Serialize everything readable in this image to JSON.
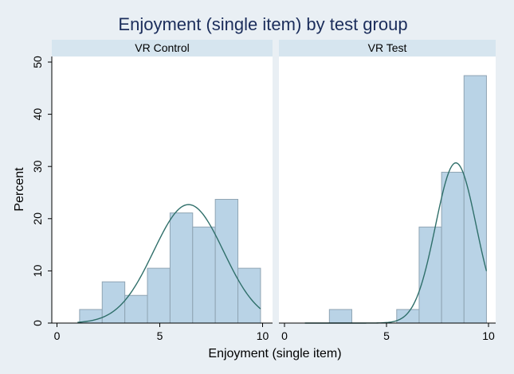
{
  "chart_data": {
    "type": "bar",
    "title": "Enjoyment (single item) by test group",
    "xlabel": "Enjoyment (single item)",
    "ylabel": "Percent",
    "xlim": [
      0,
      10
    ],
    "ylim": [
      0,
      50
    ],
    "x_ticks": [
      0,
      5,
      10
    ],
    "y_ticks": [
      0,
      10,
      20,
      30,
      40,
      50
    ],
    "grid": false,
    "colors": {
      "bar_fill": "#b9d3e6",
      "bar_stroke": "#8fa4b3",
      "curve": "#2f6f6a",
      "panel_header": "#d6e5ef",
      "background": "#e9eff4",
      "title": "#1b2d5b"
    },
    "panels": [
      {
        "label": "VR Control",
        "bins": [
          {
            "x0": 1.1,
            "x1": 2.2,
            "value": 2.6
          },
          {
            "x0": 2.2,
            "x1": 3.3,
            "value": 7.9
          },
          {
            "x0": 3.3,
            "x1": 4.4,
            "value": 5.3
          },
          {
            "x0": 4.4,
            "x1": 5.5,
            "value": 10.5
          },
          {
            "x0": 5.5,
            "x1": 6.6,
            "value": 21.1
          },
          {
            "x0": 6.6,
            "x1": 7.7,
            "value": 18.4
          },
          {
            "x0": 7.7,
            "x1": 8.8,
            "value": 23.7
          },
          {
            "x0": 8.8,
            "x1": 9.9,
            "value": 10.5
          }
        ],
        "normal_curve": {
          "mean": 6.4,
          "sd": 1.7,
          "peak": 22.7,
          "x_from": 1.0,
          "x_to": 9.9
        }
      },
      {
        "label": "VR Test",
        "bins": [
          {
            "x0": 2.2,
            "x1": 3.3,
            "value": 2.6
          },
          {
            "x0": 5.5,
            "x1": 6.6,
            "value": 2.6
          },
          {
            "x0": 6.6,
            "x1": 7.7,
            "value": 18.4
          },
          {
            "x0": 7.7,
            "x1": 8.8,
            "value": 28.9
          },
          {
            "x0": 8.8,
            "x1": 9.9,
            "value": 47.4
          }
        ],
        "normal_curve": {
          "mean": 8.4,
          "sd": 1.0,
          "peak": 30.7,
          "x_from": 1.0,
          "x_to": 9.9
        }
      }
    ]
  }
}
